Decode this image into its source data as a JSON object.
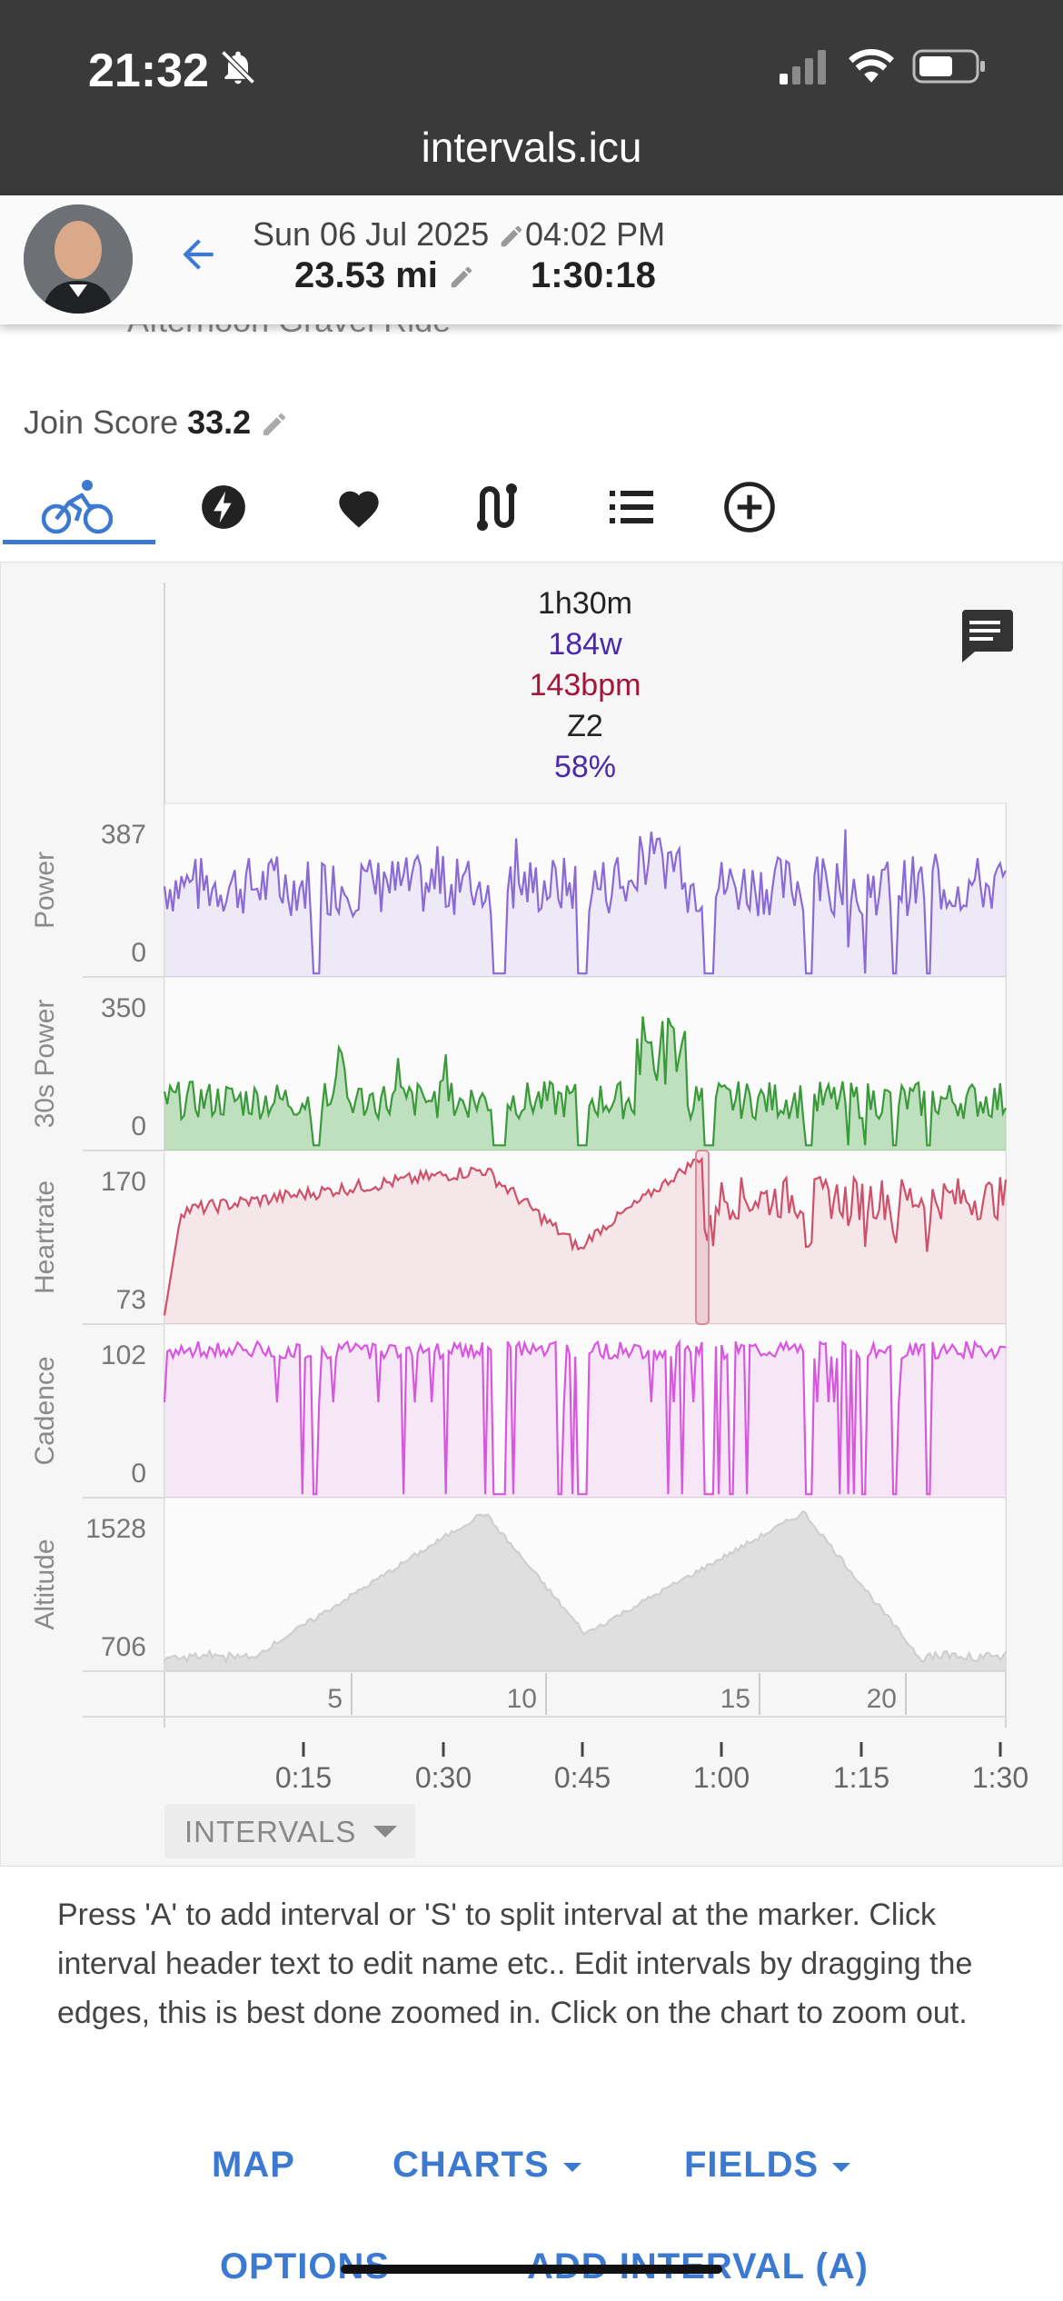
{
  "status": {
    "time": "21:32",
    "url": "intervals.icu"
  },
  "header": {
    "date": "Sun 06 Jul 2025",
    "time": "04:02 PM",
    "distance": "23.53 mi",
    "duration": "1:30:18"
  },
  "activity": {
    "title_partial": "Afternoon Gravel Ride",
    "join_label": "Join Score",
    "join_value": "33.2"
  },
  "tabs": [
    {
      "name": "ride",
      "active": true
    },
    {
      "name": "power"
    },
    {
      "name": "heart"
    },
    {
      "name": "route"
    },
    {
      "name": "list"
    },
    {
      "name": "add"
    }
  ],
  "summary": {
    "duration": "1h30m",
    "power": "184w",
    "heartrate": "143bpm",
    "zone": "Z2",
    "percent": "58%"
  },
  "chart_data": [
    {
      "type": "area",
      "ylabel": "Power",
      "ylim": [
        0,
        387
      ],
      "ticks": [
        "387",
        "0"
      ],
      "color": "#8a6ad6"
    },
    {
      "type": "area",
      "ylabel": "30s Power",
      "ylim": [
        0,
        350
      ],
      "ticks": [
        "350",
        "0"
      ],
      "color": "#4caf50"
    },
    {
      "type": "area",
      "ylabel": "Heartrate",
      "ylim": [
        73,
        170
      ],
      "ticks": [
        "170",
        "73"
      ],
      "color": "#d0506a"
    },
    {
      "type": "area",
      "ylabel": "Cadence",
      "ylim": [
        0,
        102
      ],
      "ticks": [
        "102",
        "0"
      ],
      "color": "#d957e0"
    },
    {
      "type": "area",
      "ylabel": "Altitude",
      "ylim": [
        706,
        1528
      ],
      "ticks": [
        "1528",
        "706"
      ],
      "color": "#cccccc"
    }
  ],
  "distance_ticks": [
    "5",
    "10",
    "15",
    "20"
  ],
  "time_ticks": [
    "0:15",
    "0:30",
    "0:45",
    "1:00",
    "1:15",
    "1:30"
  ],
  "intervals_button": "INTERVALS",
  "note": "Press 'A' to add interval or 'S' to split interval at the marker. Click interval header text to edit name etc.. Edit intervals by dragging the edges, this is best done zoomed in. Click on the chart to zoom out.",
  "links": {
    "map": "MAP",
    "charts": "CHARTS",
    "fields": "FIELDS",
    "options": "OPTIONS",
    "add_interval": "ADD INTERVAL (A)"
  }
}
